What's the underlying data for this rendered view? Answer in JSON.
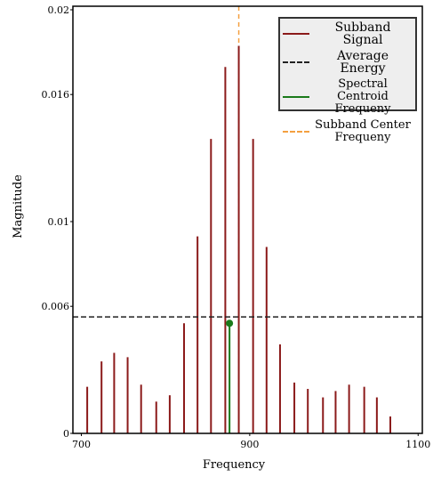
{
  "chart_data": {
    "type": "bar",
    "x_label": "Frequency",
    "y_label": "Magnitude",
    "xlim": [
      690,
      1105
    ],
    "ylim": [
      0,
      0.02
    ],
    "xticks": [
      700,
      900,
      1100
    ],
    "yticks": [
      0,
      0.006,
      0.01,
      0.016,
      0.02
    ],
    "series": [
      {
        "name": "Subband Signal",
        "color": "#8b1a1a",
        "x": [
          707,
          724,
          739,
          755,
          771,
          789,
          805,
          822,
          838,
          854,
          871,
          887,
          904,
          920,
          936,
          953,
          969,
          987,
          1002,
          1018,
          1036,
          1051,
          1067
        ],
        "values": [
          0.0022,
          0.0034,
          0.0038,
          0.0036,
          0.0023,
          0.0015,
          0.0018,
          0.0052,
          0.0093,
          0.0139,
          0.0173,
          0.0183,
          0.0139,
          0.0088,
          0.0042,
          0.0024,
          0.0021,
          0.0017,
          0.002,
          0.0023,
          0.0022,
          0.0017,
          0.0008
        ]
      },
      {
        "name": "Average Energy",
        "color": "#222222",
        "value": 0.0055
      },
      {
        "name": "Spectral Centroid Frequeny",
        "color": "#1a7a1a",
        "x": 876,
        "value": 0.0052
      },
      {
        "name": "Subband Center Frequeny",
        "color": "#f4a040",
        "x": 887
      }
    ]
  }
}
